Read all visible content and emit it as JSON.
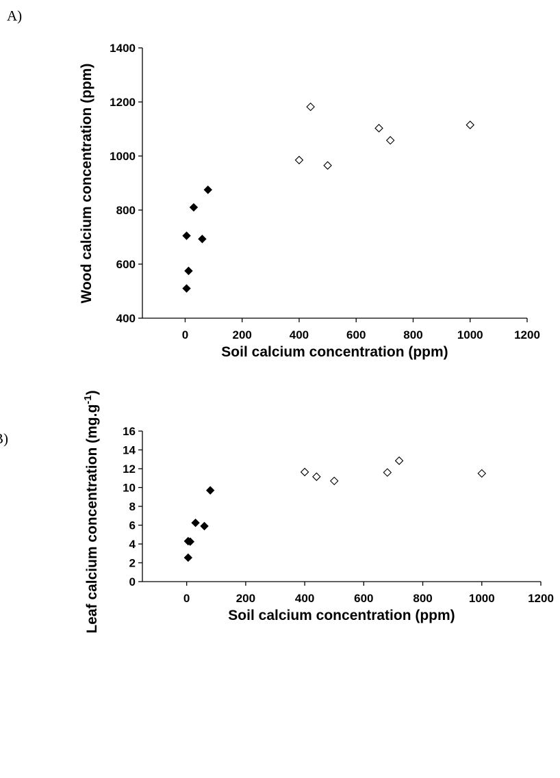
{
  "chart_data": [
    {
      "type": "scatter",
      "panel_label": "A)",
      "title": "",
      "xlabel": "Soil calcium concentration (ppm)",
      "ylabel": "Wood calcium concentration (ppm)",
      "xlim": [
        -150,
        1200
      ],
      "ylim": [
        400,
        1400
      ],
      "xticks": [
        0,
        200,
        400,
        600,
        800,
        1000,
        1200
      ],
      "yticks": [
        400,
        600,
        800,
        1000,
        1200,
        1400
      ],
      "grid": false,
      "series": [
        {
          "marker": "filled-diamond",
          "color": "#000000",
          "x": [
            5,
            5,
            12,
            30,
            60,
            80
          ],
          "y": [
            510,
            705,
            575,
            810,
            693,
            875
          ]
        },
        {
          "marker": "open-diamond",
          "color": "#000000",
          "x": [
            400,
            440,
            500,
            680,
            720,
            1000
          ],
          "y": [
            985,
            1182,
            965,
            1103,
            1058,
            1115
          ]
        }
      ]
    },
    {
      "type": "scatter",
      "panel_label": "B)",
      "title": "",
      "xlabel": "Soil calcium concentration (ppm)",
      "ylabel": "Leaf calcium concentration (mg.g",
      "ylabel_superscript": "-1",
      "ylabel_suffix": ")",
      "xlim": [
        -150,
        1200
      ],
      "ylim": [
        0,
        16
      ],
      "xticks": [
        0,
        200,
        400,
        600,
        800,
        1000,
        1200
      ],
      "yticks": [
        0,
        2,
        4,
        6,
        8,
        10,
        12,
        14,
        16
      ],
      "grid": false,
      "series": [
        {
          "marker": "filled-diamond",
          "color": "#000000",
          "x": [
            5,
            5,
            12,
            30,
            60,
            80
          ],
          "y": [
            2.55,
            4.3,
            4.25,
            6.25,
            5.9,
            9.7
          ]
        },
        {
          "marker": "open-diamond",
          "color": "#000000",
          "x": [
            400,
            440,
            500,
            680,
            720,
            1000
          ],
          "y": [
            11.65,
            11.15,
            10.7,
            11.6,
            12.85,
            11.5
          ]
        }
      ]
    }
  ]
}
